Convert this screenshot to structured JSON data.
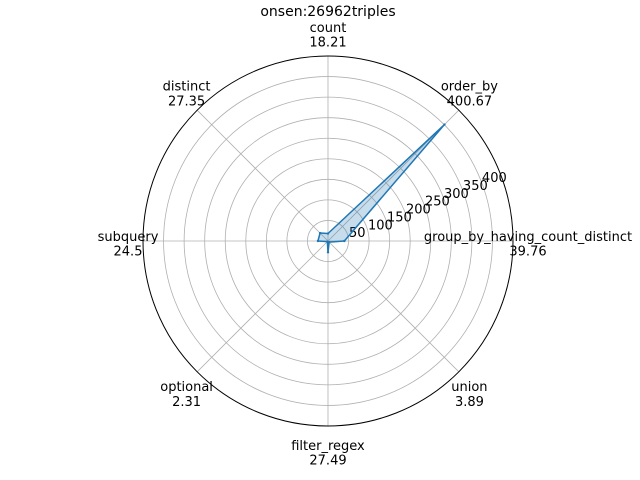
{
  "chart_data": {
    "type": "radar",
    "title": "onsen:26962triples",
    "categories": [
      "count",
      "order_by",
      "group_by_having_count_distinct",
      "union",
      "filter_regex",
      "optional",
      "subquery",
      "distinct"
    ],
    "value_labels": [
      "18.21",
      "400.67",
      "39.76",
      "3.89",
      "27.49",
      "2.31",
      "24.5",
      "27.35"
    ],
    "values": [
      18.21,
      400.67,
      39.76,
      3.89,
      27.49,
      2.31,
      24.5,
      27.35
    ],
    "radial_ticks": [
      50,
      100,
      150,
      200,
      250,
      300,
      350,
      400
    ],
    "rlim": [
      0,
      450
    ],
    "grid": true,
    "line_color": "#1f77b4",
    "fill_color": "#1f77b4"
  }
}
